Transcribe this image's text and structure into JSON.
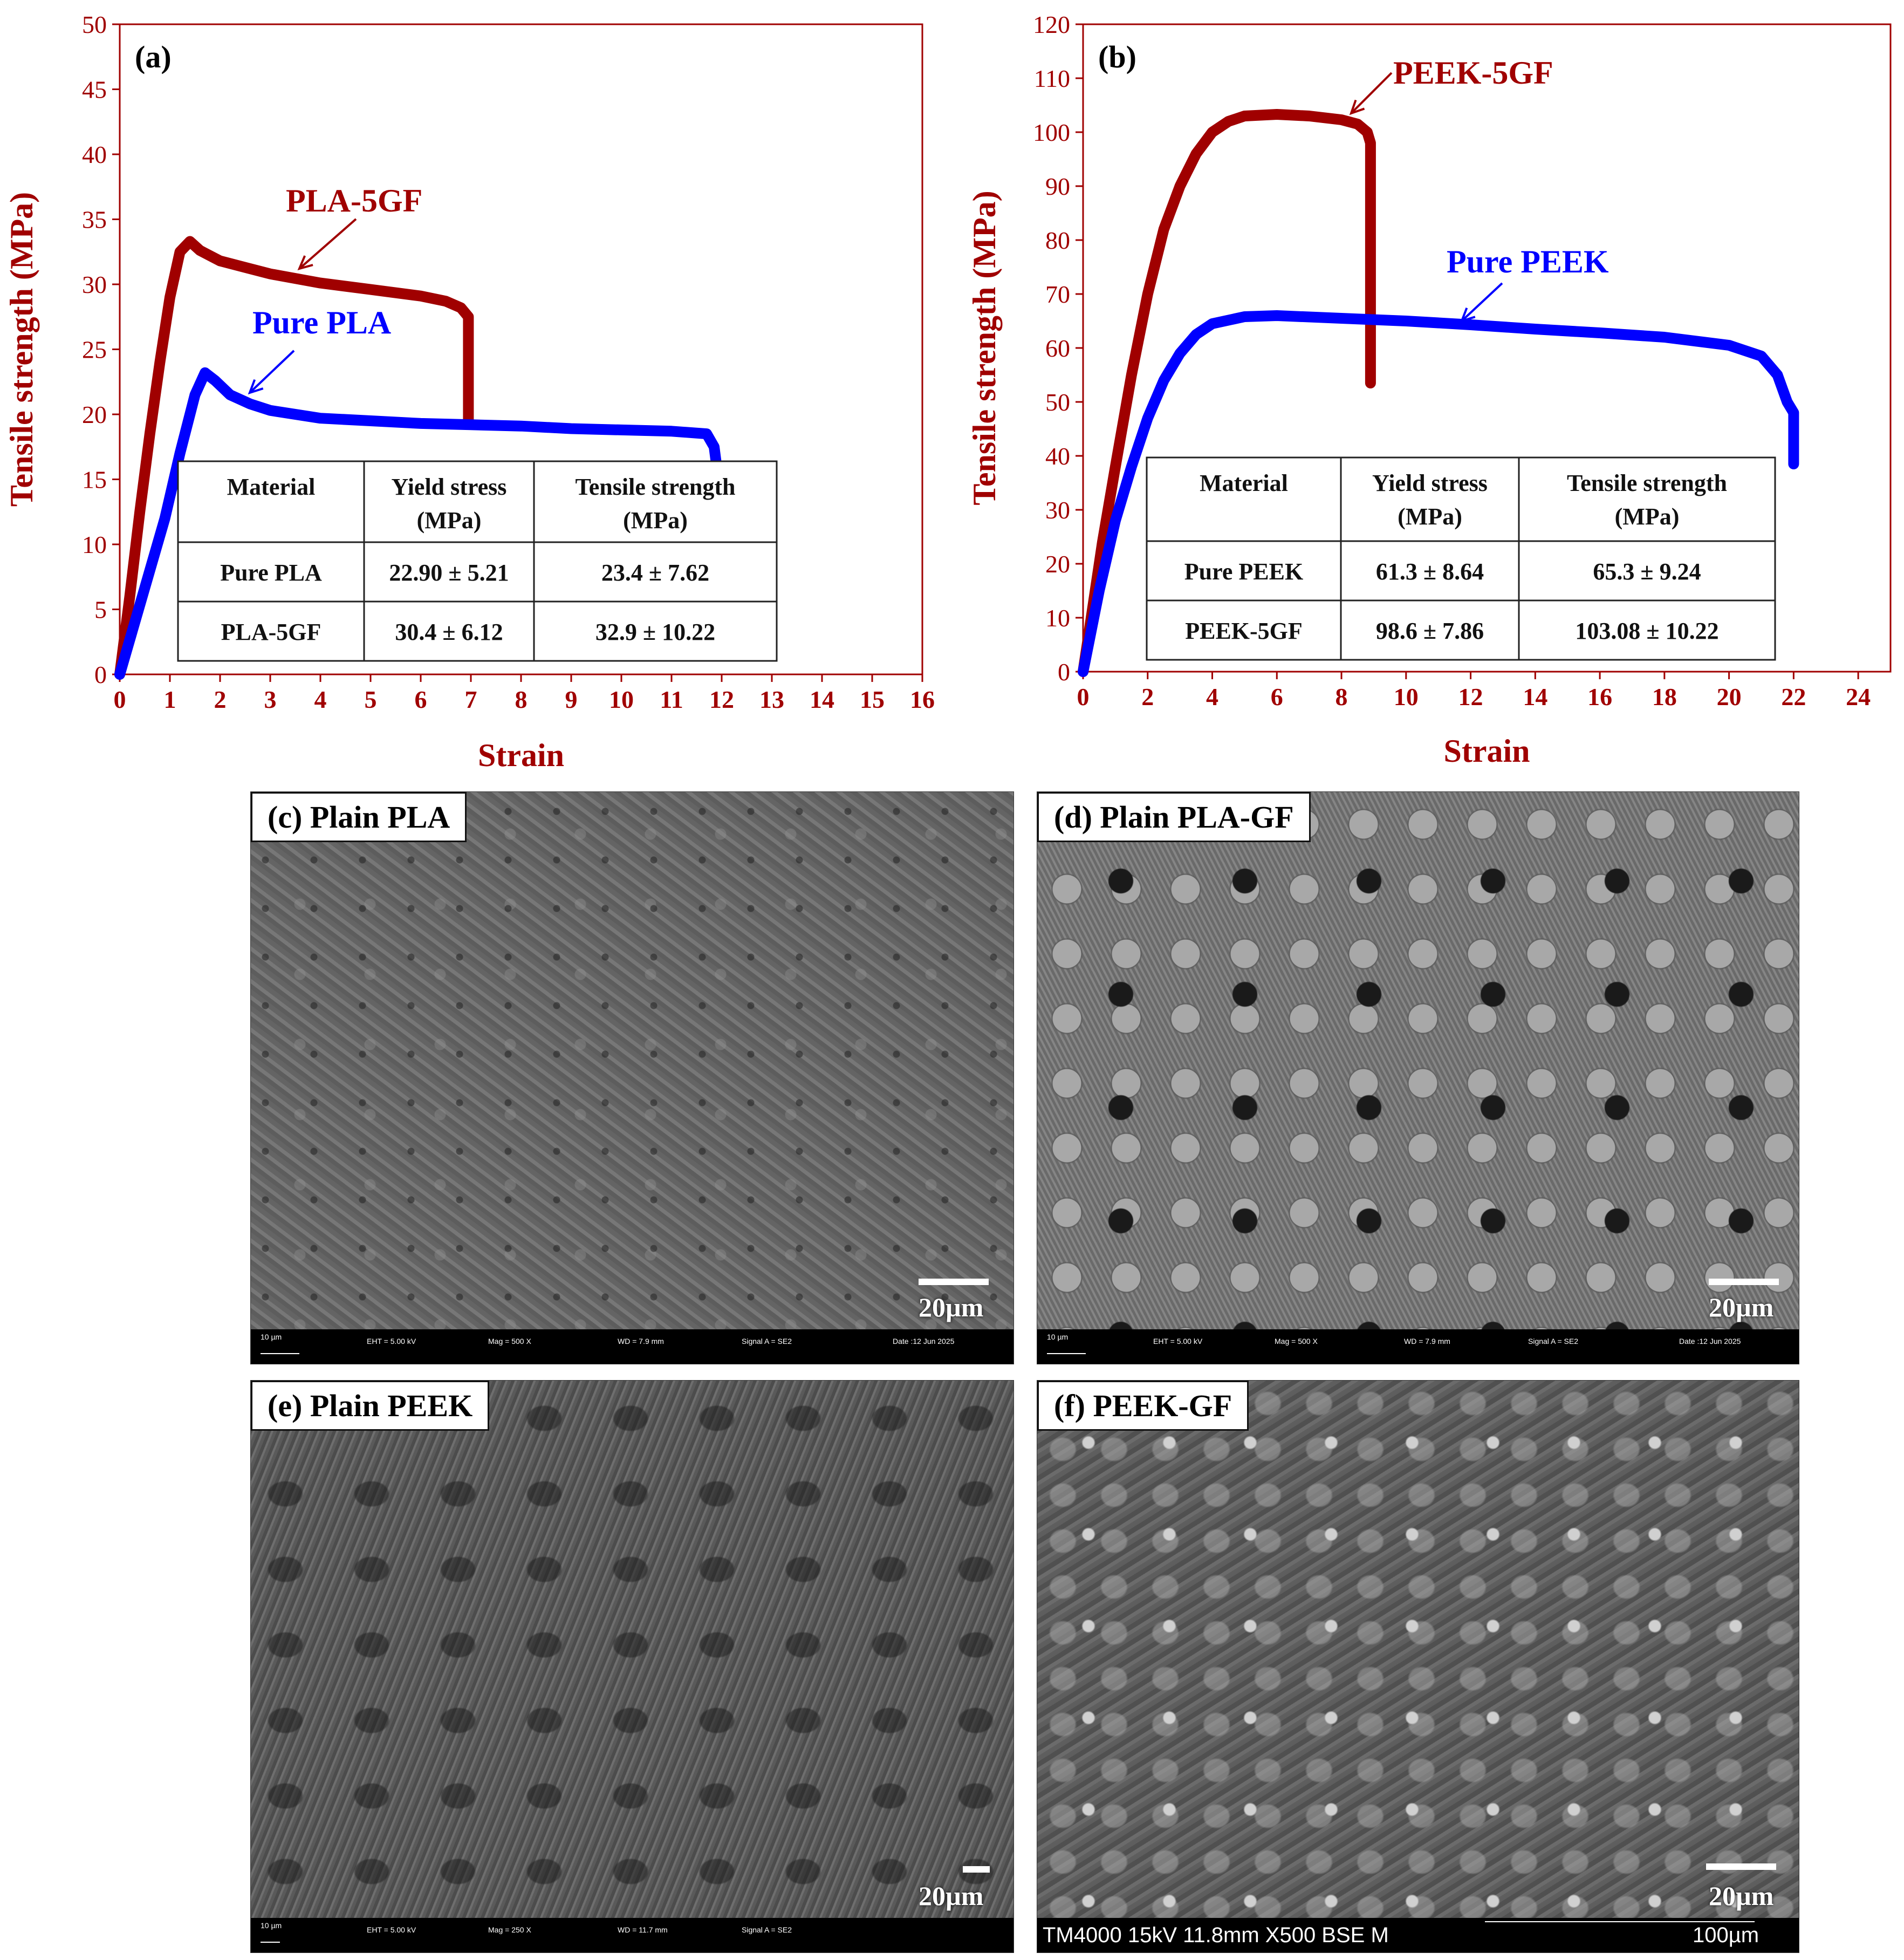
{
  "chart_data": [
    {
      "type": "line",
      "panel_label": "(a)",
      "xlabel": "Strain",
      "ylabel": "Tensile strength (MPa)",
      "xlim": [
        0,
        16
      ],
      "ylim": [
        0,
        50
      ],
      "x_ticks": [
        0,
        1,
        2,
        3,
        4,
        5,
        6,
        7,
        8,
        9,
        10,
        11,
        12,
        13,
        14,
        15,
        16
      ],
      "y_ticks": [
        0,
        5,
        10,
        15,
        20,
        25,
        30,
        35,
        40,
        45,
        50
      ],
      "series": [
        {
          "name": "PLA-5GF",
          "color": "#a00000",
          "x": [
            0,
            0.2,
            0.4,
            0.6,
            0.8,
            1.0,
            1.2,
            1.4,
            1.6,
            2.0,
            2.5,
            3.0,
            4.0,
            5.0,
            6.0,
            6.5,
            6.8,
            6.95,
            6.95
          ],
          "y": [
            0,
            6,
            12.5,
            18.5,
            24,
            29,
            32.5,
            33.3,
            32.6,
            31.8,
            31.3,
            30.8,
            30.1,
            29.6,
            29.1,
            28.7,
            28.2,
            27.5,
            19.4
          ]
        },
        {
          "name": "Pure PLA",
          "color": "#0000ff",
          "x": [
            0,
            0.3,
            0.6,
            0.9,
            1.2,
            1.5,
            1.7,
            1.9,
            2.2,
            2.6,
            3.0,
            4.0,
            5.0,
            6.0,
            7.0,
            8.0,
            9.0,
            10.0,
            11.0,
            11.7,
            11.85,
            12.0,
            12.2,
            12.4,
            12.7,
            13.0
          ],
          "y": [
            0,
            4,
            8,
            12,
            17,
            21.5,
            23.2,
            22.6,
            21.5,
            20.8,
            20.3,
            19.7,
            19.5,
            19.3,
            19.2,
            19.1,
            18.9,
            18.8,
            18.7,
            18.5,
            17.5,
            13,
            7,
            4.5,
            3.2,
            2.4
          ]
        }
      ],
      "annotations": [
        {
          "text": "PLA-5GF",
          "color": "#a00000"
        },
        {
          "text": "Pure PLA",
          "color": "#0000ff"
        }
      ],
      "table": {
        "headers": [
          [
            "Material"
          ],
          [
            "Yield stress",
            "(MPa)"
          ],
          [
            "Tensile strength",
            "(MPa)"
          ]
        ],
        "rows": [
          [
            "Pure PLA",
            "22.90 ± 5.21",
            "23.4 ± 7.62"
          ],
          [
            "PLA-5GF",
            "30.4 ± 6.12",
            "32.9 ± 10.22"
          ]
        ]
      }
    },
    {
      "type": "line",
      "panel_label": "(b)",
      "xlabel": "Strain",
      "ylabel": "Tensile strength (MPa)",
      "xlim": [
        0,
        25
      ],
      "ylim": [
        0,
        120
      ],
      "x_ticks": [
        0,
        2,
        4,
        6,
        8,
        10,
        12,
        14,
        16,
        18,
        20,
        22,
        24
      ],
      "y_ticks": [
        0,
        10,
        20,
        30,
        40,
        50,
        60,
        70,
        80,
        90,
        100,
        110,
        120
      ],
      "series": [
        {
          "name": "PEEK-5GF",
          "color": "#a00000",
          "x": [
            0,
            0.3,
            0.6,
            1.0,
            1.5,
            2.0,
            2.5,
            3.0,
            3.5,
            4.0,
            4.5,
            5.0,
            6.0,
            7.0,
            8.0,
            8.5,
            8.8,
            8.9,
            8.9
          ],
          "y": [
            0,
            12,
            24,
            38,
            55,
            70,
            82,
            90,
            96,
            100,
            102,
            103,
            103.3,
            103,
            102.3,
            101.5,
            100,
            98,
            53.5
          ]
        },
        {
          "name": "Pure PEEK",
          "color": "#0000ff",
          "x": [
            0,
            0.5,
            1.0,
            1.5,
            2.0,
            2.5,
            3.0,
            3.5,
            4.0,
            5.0,
            6.0,
            8.0,
            10.0,
            12.0,
            14.0,
            16.0,
            18.0,
            20.0,
            21.0,
            21.5,
            21.8,
            22.0,
            22.0
          ],
          "y": [
            0,
            15,
            28,
            38,
            47,
            54,
            59,
            62.5,
            64.5,
            65.8,
            66,
            65.5,
            65,
            64.3,
            63.5,
            62.8,
            62,
            60.5,
            58.5,
            55,
            50,
            48,
            38.5
          ]
        }
      ],
      "annotations": [
        {
          "text": "PEEK-5GF",
          "color": "#a00000"
        },
        {
          "text": "Pure PEEK",
          "color": "#0000ff"
        }
      ],
      "table": {
        "headers": [
          [
            "Material"
          ],
          [
            "Yield stress",
            "(MPa)"
          ],
          [
            "Tensile strength",
            "(MPa)"
          ]
        ],
        "rows": [
          [
            "Pure PEEK",
            "61.3 ± 8.64",
            "65.3 ± 9.24"
          ],
          [
            "PEEK-5GF",
            "98.6 ± 7.86",
            "103.08 ± 10.22"
          ]
        ]
      }
    }
  ],
  "micrographs": {
    "c": {
      "label": "(c) Plain PLA",
      "scale": "20µm",
      "info": {
        "bar": "10 µm",
        "eht": "EHT = 5.00 kV",
        "mag": "Mag = 500 X",
        "wd": "WD = 7.9 mm",
        "signal": "Signal A = SE2",
        "date": "Date :12 Jun 2025"
      }
    },
    "d": {
      "label": "(d) Plain PLA-GF",
      "scale": "20µm",
      "info": {
        "bar": "10 µm",
        "eht": "EHT = 5.00 kV",
        "mag": "Mag = 500 X",
        "wd": "WD = 7.9 mm",
        "signal": "Signal A = SE2",
        "date": "Date :12 Jun 2025"
      }
    },
    "e": {
      "label": "(e) Plain PEEK",
      "scale": "20µm",
      "info": {
        "bar": "10 µm",
        "eht": "EHT = 5.00 kV",
        "mag": "Mag = 250 X",
        "wd": "WD = 11.7 mm",
        "signal": "Signal A = SE2"
      }
    },
    "f": {
      "label": "(f) PEEK-GF",
      "scale": "20µm",
      "info": {
        "caption": "TM4000 15kV 11.8mm X500 BSE M",
        "bar": "100µm"
      }
    }
  },
  "colors": {
    "axis": "#a00000",
    "pla5gf": "#a00000",
    "pure": "#0000ff"
  }
}
